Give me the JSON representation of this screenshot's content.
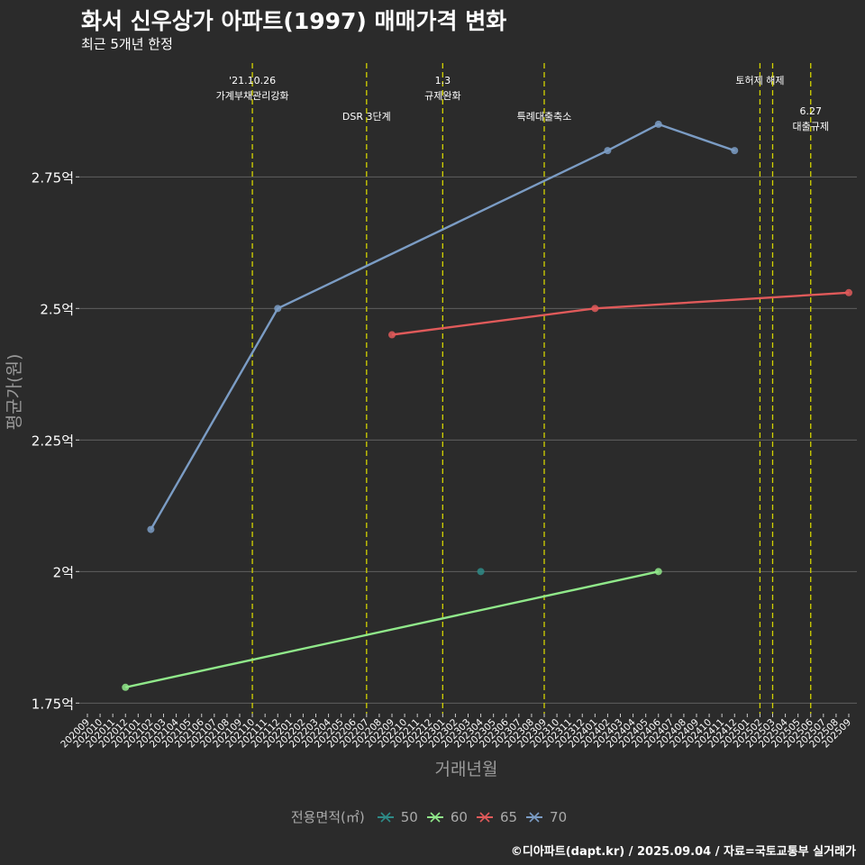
{
  "header": {
    "title": "화서 신우상가 아파트(1997) 매매가격 변화",
    "subtitle": "최근 5개년 한정"
  },
  "footer": {
    "caption": "©디아파트(dapt.kr) / 2025.09.04 / 자료=국토교통부 실거래가"
  },
  "colors": {
    "background": "#2b2b2b",
    "grid": "#5f5f5f",
    "vline": "#d4d400",
    "axis_text": "#ffffff",
    "axis_title": "#9a9a9a"
  },
  "chart_data": {
    "type": "line",
    "title": "화서 신우상가 아파트(1997) 매매가격 변화",
    "xlabel": "거래년월",
    "ylabel": "평균가(원)",
    "ylim": [
      1.73,
      2.98
    ],
    "yticks": [
      {
        "value": 1.75,
        "label": "1.75억"
      },
      {
        "value": 2.0,
        "label": "2억"
      },
      {
        "value": 2.25,
        "label": "2.25억"
      },
      {
        "value": 2.5,
        "label": "2.5억"
      },
      {
        "value": 2.75,
        "label": "2.75억"
      }
    ],
    "categories": [
      "202009",
      "202010",
      "202011",
      "202012",
      "202101",
      "202102",
      "202103",
      "202104",
      "202105",
      "202106",
      "202107",
      "202108",
      "202109",
      "202110",
      "202111",
      "202112",
      "202201",
      "202202",
      "202203",
      "202204",
      "202205",
      "202206",
      "202207",
      "202208",
      "202209",
      "202210",
      "202211",
      "202212",
      "202301",
      "202302",
      "202303",
      "202304",
      "202305",
      "202306",
      "202307",
      "202308",
      "202309",
      "202310",
      "202311",
      "202312",
      "202401",
      "202402",
      "202403",
      "202404",
      "202405",
      "202406",
      "202407",
      "202408",
      "202409",
      "202410",
      "202411",
      "202412",
      "202501",
      "202502",
      "202503",
      "202504",
      "202505",
      "202506",
      "202507",
      "202508",
      "202509"
    ],
    "legend_title": "전용면적(㎡)",
    "series": [
      {
        "name": "50",
        "color": "#2e8b87",
        "points": [
          {
            "x": "202304",
            "y": 2.0
          }
        ]
      },
      {
        "name": "60",
        "color": "#90e88a",
        "points": [
          {
            "x": "202012",
            "y": 1.78
          },
          {
            "x": "202406",
            "y": 2.0
          }
        ]
      },
      {
        "name": "65",
        "color": "#e05a5a",
        "points": [
          {
            "x": "202209",
            "y": 2.45
          },
          {
            "x": "202401",
            "y": 2.5
          },
          {
            "x": "202509",
            "y": 2.53
          }
        ]
      },
      {
        "name": "70",
        "color": "#7b9cc4",
        "points": [
          {
            "x": "202102",
            "y": 2.08
          },
          {
            "x": "202112",
            "y": 2.5
          },
          {
            "x": "202402",
            "y": 2.8
          },
          {
            "x": "202406",
            "y": 2.85
          },
          {
            "x": "202412",
            "y": 2.8
          }
        ]
      }
    ],
    "events": [
      {
        "x": "202110",
        "lines": [
          "'21.10.26",
          "가계부채관리강화"
        ],
        "level": 0
      },
      {
        "x": "202207",
        "lines": [
          "DSR 3단계"
        ],
        "level": 1
      },
      {
        "x": "202301",
        "lines": [
          "1.3",
          "규제완화"
        ],
        "level": 0
      },
      {
        "x": "202309",
        "lines": [
          "특례대출축소"
        ],
        "level": 1
      },
      {
        "x": "202502",
        "lines": [
          "토허제 해제"
        ],
        "level": 0
      },
      {
        "x": "202503",
        "lines": [],
        "level": 0
      },
      {
        "x": "202506",
        "lines": [
          "6.27",
          "대출규제"
        ],
        "level": 2
      }
    ]
  }
}
